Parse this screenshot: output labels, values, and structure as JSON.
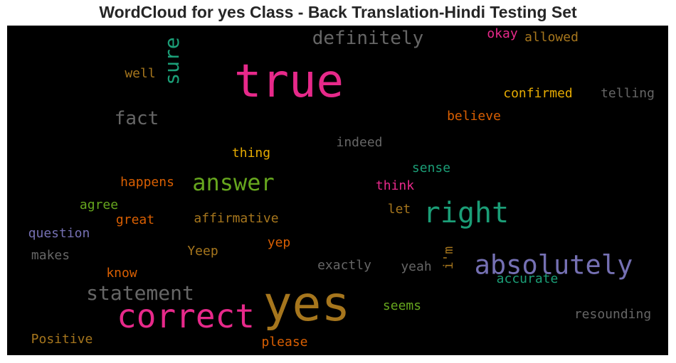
{
  "title": "WordCloud for yes Class - Back Translation-Hindi Testing Set",
  "chart_data": {
    "type": "wordcloud",
    "background": "#000000",
    "colors": {
      "pink": "#e7298a",
      "gold": "#a6761d",
      "teal": "#1b9e77",
      "purple": "#7570b3",
      "green": "#66a61e",
      "orange": "#d95f02",
      "grey": "#666666",
      "yellow": "#e6ab02"
    },
    "words": [
      {
        "text": "true",
        "weight": 1.0,
        "color": "#e7298a"
      },
      {
        "text": "yes",
        "weight": 1.0,
        "color": "#a6761d"
      },
      {
        "text": "correct",
        "weight": 0.7,
        "color": "#e7298a"
      },
      {
        "text": "right",
        "weight": 0.6,
        "color": "#1b9e77"
      },
      {
        "text": "absolutely",
        "weight": 0.55,
        "color": "#7570b3"
      },
      {
        "text": "answer",
        "weight": 0.5,
        "color": "#66a61e"
      },
      {
        "text": "statement",
        "weight": 0.42,
        "color": "#666666"
      },
      {
        "text": "sure",
        "weight": 0.42,
        "color": "#1b9e77",
        "vertical": true
      },
      {
        "text": "definitely",
        "weight": 0.38,
        "color": "#666666"
      },
      {
        "text": "fact",
        "weight": 0.38,
        "color": "#666666"
      },
      {
        "text": "confirmed",
        "weight": 0.28,
        "color": "#e6ab02"
      },
      {
        "text": "telling",
        "weight": 0.28,
        "color": "#666666"
      },
      {
        "text": "believe",
        "weight": 0.27,
        "color": "#d95f02"
      },
      {
        "text": "allowed",
        "weight": 0.27,
        "color": "#a6761d"
      },
      {
        "text": "okay",
        "weight": 0.26,
        "color": "#e7298a"
      },
      {
        "text": "well",
        "weight": 0.26,
        "color": "#a6761d"
      },
      {
        "text": "indeed",
        "weight": 0.26,
        "color": "#666666"
      },
      {
        "text": "thing",
        "weight": 0.26,
        "color": "#e6ab02"
      },
      {
        "text": "sense",
        "weight": 0.25,
        "color": "#1b9e77"
      },
      {
        "text": "happens",
        "weight": 0.26,
        "color": "#d95f02"
      },
      {
        "text": "think",
        "weight": 0.25,
        "color": "#e7298a"
      },
      {
        "text": "agree",
        "weight": 0.25,
        "color": "#66a61e"
      },
      {
        "text": "let",
        "weight": 0.25,
        "color": "#a6761d"
      },
      {
        "text": "great",
        "weight": 0.26,
        "color": "#d95f02"
      },
      {
        "text": "affirmative",
        "weight": 0.26,
        "color": "#a6761d"
      },
      {
        "text": "question",
        "weight": 0.26,
        "color": "#7570b3"
      },
      {
        "text": "yep",
        "weight": 0.25,
        "color": "#d95f02"
      },
      {
        "text": "i'm",
        "weight": 0.25,
        "color": "#a6761d",
        "vertical": true
      },
      {
        "text": "makes",
        "weight": 0.25,
        "color": "#666666"
      },
      {
        "text": "Yeep",
        "weight": 0.25,
        "color": "#a6761d"
      },
      {
        "text": "exactly",
        "weight": 0.26,
        "color": "#666666"
      },
      {
        "text": "yeah",
        "weight": 0.25,
        "color": "#666666"
      },
      {
        "text": "know",
        "weight": 0.25,
        "color": "#d95f02"
      },
      {
        "text": "accurate",
        "weight": 0.24,
        "color": "#1b9e77"
      },
      {
        "text": "seems",
        "weight": 0.25,
        "color": "#66a61e"
      },
      {
        "text": "resounding",
        "weight": 0.26,
        "color": "#666666"
      },
      {
        "text": "Positive",
        "weight": 0.26,
        "color": "#a6761d"
      },
      {
        "text": "please",
        "weight": 0.26,
        "color": "#d95f02"
      }
    ]
  }
}
